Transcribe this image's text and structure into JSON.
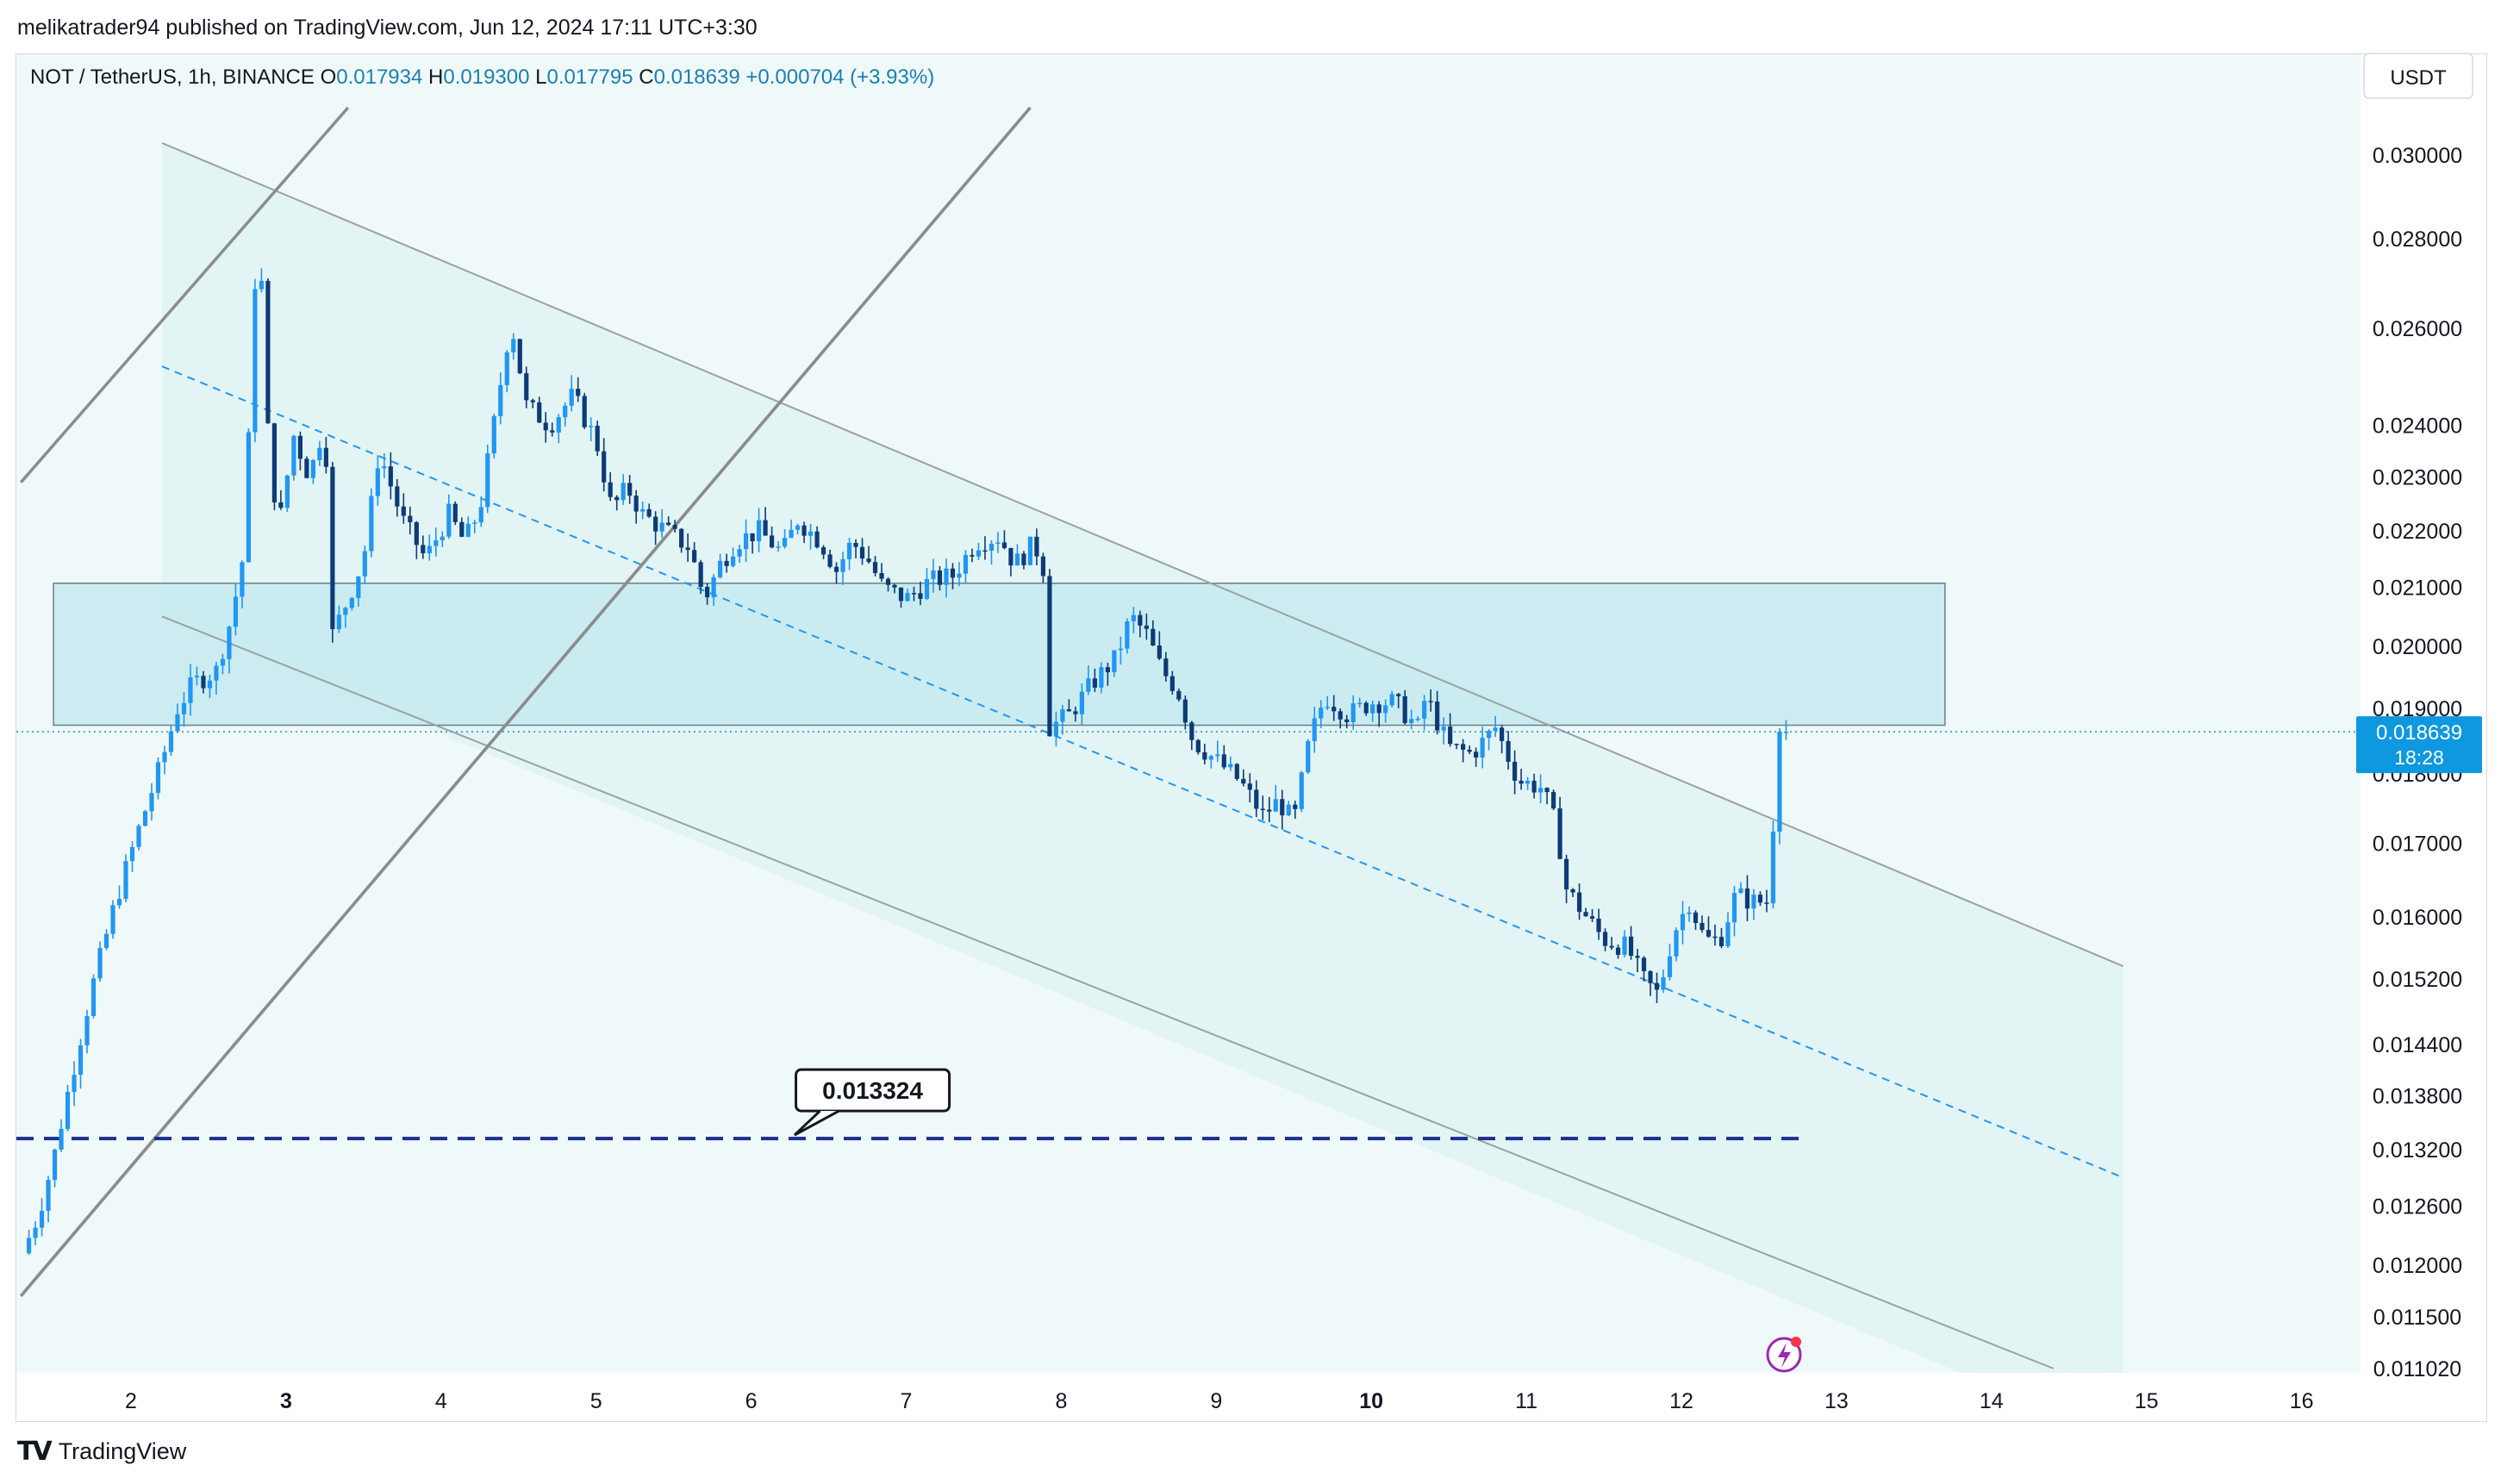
{
  "publisher": "melikatrader94 published on TradingView.com, Jun 12, 2024 17:11 UTC+3:30",
  "branding": {
    "logo_icon": "tradingview-logo-icon",
    "name": "TradingView"
  },
  "legend": {
    "symbol": "NOT / TetherUS, 1h, BINANCE",
    "o_label": "O",
    "o_value": "0.017934",
    "h_label": "H",
    "h_value": "0.019300",
    "l_label": "L",
    "l_value": "0.017795",
    "c_label": "C",
    "c_value": "0.018639",
    "change": "+0.000704 (+3.93%)"
  },
  "currency_button": "USDT",
  "price_tag": {
    "price": "0.018639",
    "countdown": "18:28"
  },
  "support_label": "0.013324",
  "colors": {
    "up": "#2196F3",
    "down": "#0D3B78",
    "accent": "#0E98E0",
    "zone_fill": "#c5eaf0",
    "channel_fill": "#e2f4f4",
    "chart_bg": "#f0f9f9",
    "support_line": "#1a2f8f",
    "trend_line": "#8c8c8c"
  },
  "chart_data": {
    "type": "candlestick",
    "title": "NOT / TetherUS, 1h, BINANCE",
    "timeframe": "1h",
    "y_scale": "log",
    "ylim": [
      0.01102,
      0.0312
    ],
    "y_ticks": [
      "0.030000",
      "0.028000",
      "0.026000",
      "0.024000",
      "0.023000",
      "0.022000",
      "0.021000",
      "0.020000",
      "0.019000",
      "0.018000",
      "0.017000",
      "0.016000",
      "0.015200",
      "0.014400",
      "0.013800",
      "0.013200",
      "0.012600",
      "0.012000",
      "0.011500",
      "0.011020"
    ],
    "x_ticks": [
      "2",
      "3",
      "4",
      "5",
      "6",
      "7",
      "8",
      "9",
      "10",
      "11",
      "12",
      "13",
      "14",
      "15",
      "16"
    ],
    "x_ticks_bold": [
      "3",
      "10"
    ],
    "x_range_days": [
      1.29,
      16.4
    ],
    "series_path": [
      [
        1.3,
        0.01212
      ],
      [
        1.4,
        0.0125
      ],
      [
        1.5,
        0.0131
      ],
      [
        1.6,
        0.0139
      ],
      [
        1.75,
        0.0151
      ],
      [
        1.9,
        0.0162
      ],
      [
        2.05,
        0.0172
      ],
      [
        2.2,
        0.0182
      ],
      [
        2.3,
        0.019
      ],
      [
        2.4,
        0.0194
      ],
      [
        2.55,
        0.0196
      ],
      [
        2.65,
        0.0205
      ],
      [
        2.72,
        0.0215
      ],
      [
        2.76,
        0.0238
      ],
      [
        2.82,
        0.0288
      ],
      [
        2.88,
        0.024
      ],
      [
        2.95,
        0.022
      ],
      [
        3.05,
        0.0238
      ],
      [
        3.15,
        0.023
      ],
      [
        3.25,
        0.0241
      ],
      [
        3.3,
        0.0202
      ],
      [
        3.4,
        0.0208
      ],
      [
        3.5,
        0.0215
      ],
      [
        3.6,
        0.0235
      ],
      [
        3.75,
        0.0222
      ],
      [
        3.9,
        0.0215
      ],
      [
        4.05,
        0.0223
      ],
      [
        4.15,
        0.0218
      ],
      [
        4.25,
        0.0224
      ],
      [
        4.35,
        0.0242
      ],
      [
        4.45,
        0.0262
      ],
      [
        4.55,
        0.0244
      ],
      [
        4.7,
        0.024
      ],
      [
        4.85,
        0.0246
      ],
      [
        5.0,
        0.0237
      ],
      [
        5.1,
        0.0224
      ],
      [
        5.2,
        0.0228
      ],
      [
        5.3,
        0.0223
      ],
      [
        5.45,
        0.022
      ],
      [
        5.6,
        0.0217
      ],
      [
        5.7,
        0.0208
      ],
      [
        5.8,
        0.0214
      ],
      [
        5.9,
        0.0218
      ],
      [
        6.05,
        0.022
      ],
      [
        6.2,
        0.0216
      ],
      [
        6.3,
        0.0222
      ],
      [
        6.45,
        0.0218
      ],
      [
        6.55,
        0.0213
      ],
      [
        6.65,
        0.0218
      ],
      [
        6.75,
        0.0215
      ],
      [
        6.85,
        0.021
      ],
      [
        7.0,
        0.0208
      ],
      [
        7.15,
        0.0211
      ],
      [
        7.3,
        0.0212
      ],
      [
        7.45,
        0.0218
      ],
      [
        7.6,
        0.0219
      ],
      [
        7.7,
        0.0214
      ],
      [
        7.8,
        0.0217
      ],
      [
        7.88,
        0.0216
      ],
      [
        7.92,
        0.0187
      ],
      [
        8.05,
        0.0189
      ],
      [
        8.2,
        0.0194
      ],
      [
        8.35,
        0.0198
      ],
      [
        8.45,
        0.0205
      ],
      [
        8.55,
        0.0202
      ],
      [
        8.65,
        0.0196
      ],
      [
        8.75,
        0.0193
      ],
      [
        8.85,
        0.0185
      ],
      [
        9.0,
        0.0182
      ],
      [
        9.15,
        0.0179
      ],
      [
        9.3,
        0.0174
      ],
      [
        9.4,
        0.0176
      ],
      [
        9.5,
        0.0173
      ],
      [
        9.6,
        0.0185
      ],
      [
        9.7,
        0.0192
      ],
      [
        9.85,
        0.0189
      ],
      [
        10.0,
        0.0191
      ],
      [
        10.15,
        0.0191
      ],
      [
        10.3,
        0.0187
      ],
      [
        10.35,
        0.0192
      ],
      [
        10.5,
        0.0184
      ],
      [
        10.65,
        0.0183
      ],
      [
        10.8,
        0.0187
      ],
      [
        10.95,
        0.0179
      ],
      [
        11.1,
        0.0178
      ],
      [
        11.2,
        0.0172
      ],
      [
        11.25,
        0.0164
      ],
      [
        11.35,
        0.0161
      ],
      [
        11.5,
        0.0157
      ],
      [
        11.65,
        0.0156
      ],
      [
        11.75,
        0.0152
      ],
      [
        11.85,
        0.015
      ],
      [
        11.95,
        0.0158
      ],
      [
        12.05,
        0.0162
      ],
      [
        12.15,
        0.0157
      ],
      [
        12.25,
        0.0157
      ],
      [
        12.35,
        0.0163
      ],
      [
        12.45,
        0.0162
      ],
      [
        12.55,
        0.0162
      ],
      [
        12.6,
        0.0175
      ],
      [
        12.68,
        0.01864
      ]
    ],
    "last_price": 0.018639,
    "support_level": 0.013324,
    "resistance_zone": {
      "from": 0.01874,
      "to": 0.02107,
      "x_from": 1.5,
      "x_to": 13.7
    },
    "descending_channel": {
      "upper": [
        [
          2.2,
          0.0303
        ],
        [
          14.85,
          0.01536
        ]
      ],
      "lower": [
        [
          2.2,
          0.0205
        ],
        [
          14.4,
          0.01102
        ]
      ],
      "midline": [
        [
          2.2,
          0.0252
        ],
        [
          14.85,
          0.0129
        ]
      ],
      "fill_until_x": 14.85
    },
    "ascending_channel": {
      "upper": [
        [
          1.29,
          0.0229
        ],
        [
          3.4,
          0.0312
        ]
      ],
      "lower": [
        [
          1.29,
          0.0117
        ],
        [
          7.8,
          0.0312
        ]
      ],
      "third_line": [
        [
          1.29,
          0.0117
        ],
        [
          3.4,
          0.016
        ]
      ]
    },
    "grid": false,
    "legend_position": "top-left"
  }
}
